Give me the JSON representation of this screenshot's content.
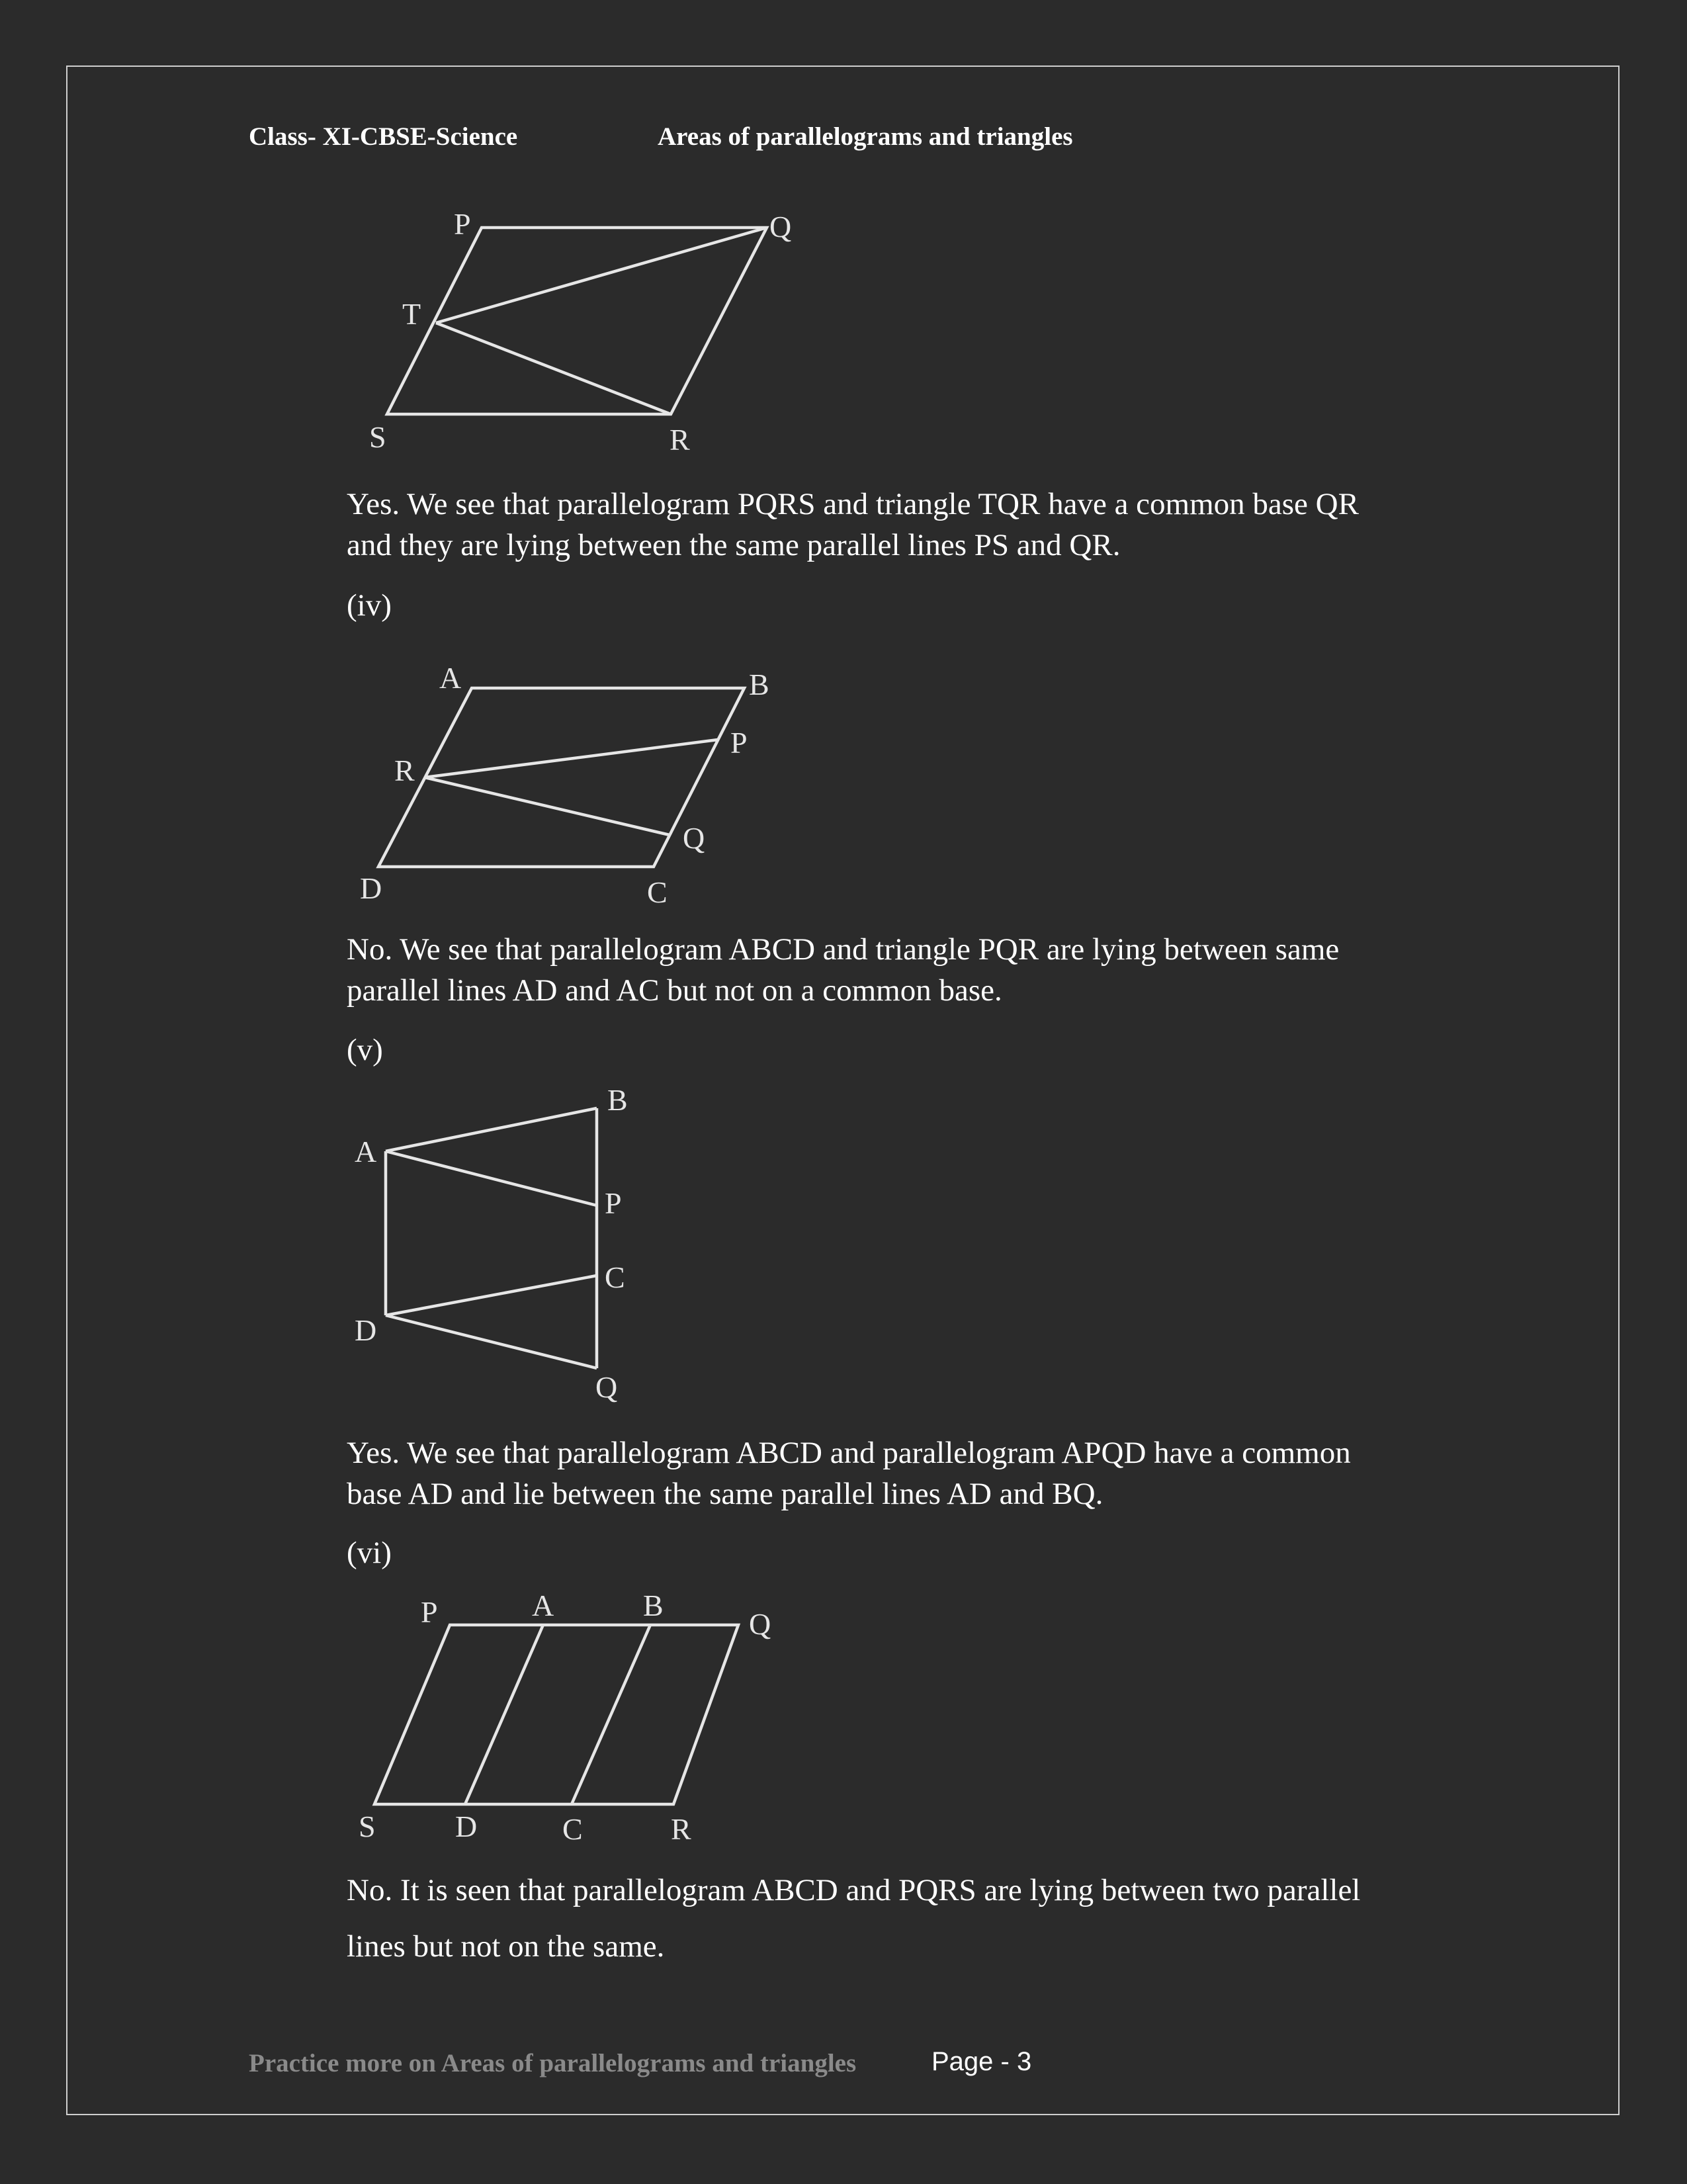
{
  "header": {
    "class_label": "Class- XI-CBSE-Science",
    "chapter_title": "Areas of parallelograms and triangles"
  },
  "figure_iii": {
    "points": {
      "P": "P",
      "Q": "Q",
      "T": "T",
      "S": "S",
      "R": "R"
    }
  },
  "answer_iii": [
    "Yes. We see that parallelogram PQRS and triangle TQR have a common base QR",
    "and they are lying between the same parallel lines PS and QR."
  ],
  "label_iv": "(iv)",
  "figure_iv": {
    "points": {
      "A": "A",
      "B": "B",
      "P": "P",
      "R": "R",
      "Q": "Q",
      "D": "D",
      "C": "C"
    }
  },
  "answer_iv": [
    "No. We see that parallelogram ABCD and triangle PQR are lying between same",
    "parallel lines AD and AC but not on a common base."
  ],
  "label_v": "(v)",
  "figure_v": {
    "points": {
      "B": "B",
      "A": "A",
      "P": "P",
      "C": "C",
      "D": "D",
      "Q": "Q"
    }
  },
  "answer_v": [
    "Yes. We see that parallelogram ABCD and parallelogram APQD have a common",
    "base AD and lie between the same parallel lines AD and BQ."
  ],
  "label_vi": "(vi)",
  "figure_vi": {
    "points": {
      "P": "P",
      "A": "A",
      "B": "B",
      "Q": "Q",
      "S": "S",
      "D": "D",
      "C": "C",
      "R": "R"
    }
  },
  "answer_vi": [
    "No. It is seen that parallelogram ABCD and PQRS are lying between two parallel",
    "lines but not on the same."
  ],
  "footer": {
    "practice_text": "Practice more on Areas of parallelograms and triangles",
    "page_label": "Page - 3"
  }
}
